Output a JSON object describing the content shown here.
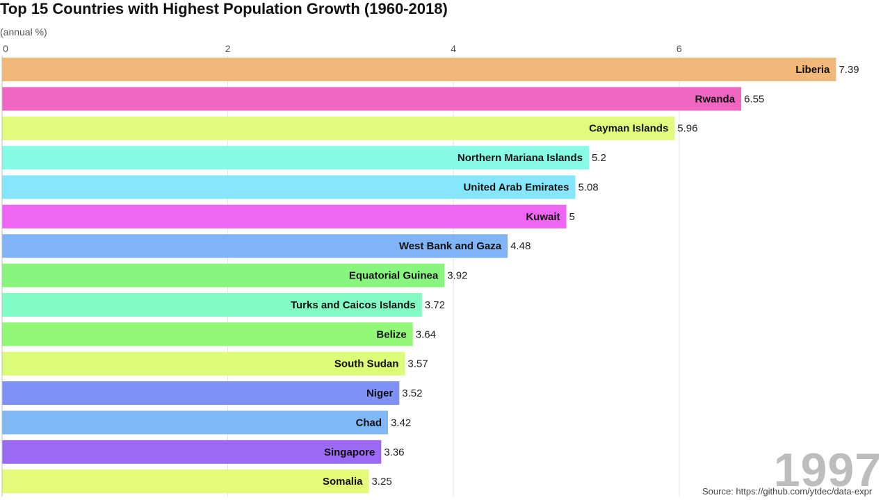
{
  "chart_data": {
    "type": "bar",
    "orientation": "horizontal",
    "title": "Top 15 Countries with Highest Population Growth (1960-2018)",
    "unit_label": "(annual %)",
    "xlim": [
      0,
      7.4
    ],
    "xticks": [
      "0",
      "2",
      "4",
      "6"
    ],
    "grid": true,
    "categories": [
      "Liberia",
      "Rwanda",
      "Cayman Islands",
      "Northern Mariana Islands",
      "United Arab Emirates",
      "Kuwait",
      "West Bank and Gaza",
      "Equatorial Guinea",
      "Turks and Caicos Islands",
      "Belize",
      "South Sudan",
      "Niger",
      "Chad",
      "Singapore",
      "Somalia"
    ],
    "values": [
      7.39,
      6.55,
      5.96,
      5.2,
      5.08,
      5,
      4.48,
      3.92,
      3.72,
      3.64,
      3.57,
      3.52,
      3.42,
      3.36,
      3.25
    ],
    "value_labels": [
      "7.39",
      "6.55",
      "5.96",
      "5.2",
      "5.08",
      "5",
      "4.48",
      "3.92",
      "3.72",
      "3.64",
      "3.57",
      "3.52",
      "3.42",
      "3.36",
      "3.25"
    ],
    "colors": [
      "#f2b87a",
      "#ef67c0",
      "#e2fb7c",
      "#88fbe8",
      "#86e6fb",
      "#ef66f4",
      "#80b4f6",
      "#88f57f",
      "#82fcc4",
      "#92f977",
      "#dcfb79",
      "#7f91f6",
      "#80b8f6",
      "#9b6af2",
      "#e4fb79"
    ],
    "year": "1997",
    "source": "Source: https://github.com/ytdec/data-expr"
  }
}
